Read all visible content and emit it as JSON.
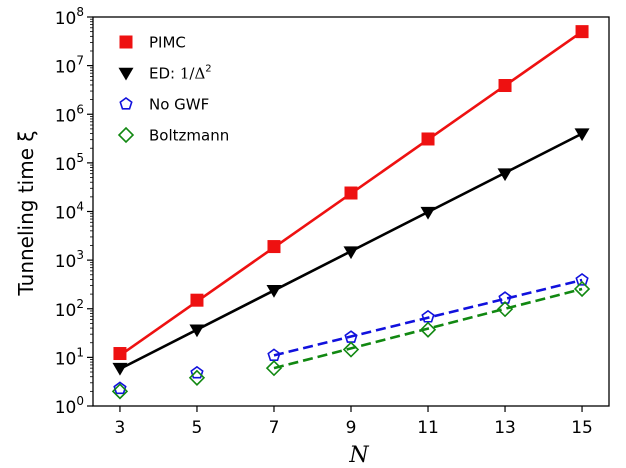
{
  "chart_data": {
    "type": "scatter",
    "title": "",
    "xlabel": "N",
    "ylabel": "Tunneling time ξ",
    "yscale": "log",
    "xlim": [
      2.3,
      15.7
    ],
    "ylim": [
      1,
      100000000
    ],
    "xticks": [
      "3",
      "5",
      "7",
      "9",
      "11",
      "13",
      "15"
    ],
    "yticks": [
      {
        "base": "10",
        "exp": "0"
      },
      {
        "base": "10",
        "exp": "1"
      },
      {
        "base": "10",
        "exp": "2"
      },
      {
        "base": "10",
        "exp": "3"
      },
      {
        "base": "10",
        "exp": "4"
      },
      {
        "base": "10",
        "exp": "5"
      },
      {
        "base": "10",
        "exp": "6"
      },
      {
        "base": "10",
        "exp": "7"
      },
      {
        "base": "10",
        "exp": "8"
      }
    ],
    "legend_position": "top-left",
    "series": [
      {
        "name": "PIMC",
        "marker": "square",
        "color": "#ee1111",
        "x": [
          3,
          5,
          7,
          9,
          11,
          13,
          15
        ],
        "y": [
          12,
          150,
          1900,
          24000,
          310000,
          3900000,
          50000000
        ],
        "fit": {
          "x": [
            3,
            15
          ],
          "y": [
            11,
            50000000
          ],
          "style": "solid"
        }
      },
      {
        "name": "ED: 1/Δ²",
        "name_prefix": "ED: ",
        "name_math": "1/Δ",
        "name_sup": "2",
        "marker": "triangle-down",
        "color": "#000000",
        "x": [
          3,
          5,
          7,
          9,
          11,
          13,
          15
        ],
        "y": [
          6,
          37,
          240,
          1500,
          9700,
          60000,
          400000
        ],
        "fit": {
          "x": [
            3,
            15
          ],
          "y": [
            5.8,
            400000
          ],
          "style": "solid"
        }
      },
      {
        "name": "No GWF",
        "marker": "pentagon",
        "color": "#1111dd",
        "x": [
          3,
          5,
          7,
          9,
          11,
          13,
          15
        ],
        "y": [
          2.3,
          4.8,
          11,
          26,
          68,
          165,
          390
        ],
        "fit": {
          "x": [
            7,
            15
          ],
          "y": [
            11,
            390
          ],
          "style": "dashed"
        }
      },
      {
        "name": "Boltzmann",
        "marker": "diamond",
        "color": "#118811",
        "x": [
          3,
          5,
          7,
          9,
          11,
          13,
          15
        ],
        "y": [
          2.0,
          3.8,
          6.0,
          14.5,
          37,
          98,
          255
        ],
        "fit": {
          "x": [
            7,
            15
          ],
          "y": [
            6,
            255
          ],
          "style": "dashed"
        }
      }
    ]
  }
}
